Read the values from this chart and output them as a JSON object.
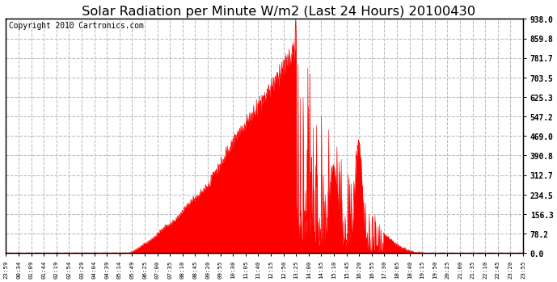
{
  "title": "Solar Radiation per Minute W/m2 (Last 24 Hours) 20100430",
  "copyright": "Copyright 2010 Cartronics.com",
  "y_ticks": [
    0.0,
    78.2,
    156.3,
    234.5,
    312.7,
    390.8,
    469.0,
    547.2,
    625.3,
    703.5,
    781.7,
    859.8,
    938.0
  ],
  "ymax": 938.0,
  "ymin": 0.0,
  "fill_color": "#ff0000",
  "line_color": "#ff0000",
  "dashed_line_color": "#ff0000",
  "grid_color": "#bbbbbb",
  "background_color": "#ffffff",
  "plot_bg_color": "#ffffff",
  "title_fontsize": 11,
  "copyright_fontsize": 6.5,
  "tick_labels": [
    "23:59",
    "00:34",
    "01:09",
    "01:44",
    "02:19",
    "02:54",
    "03:29",
    "04:04",
    "04:39",
    "05:14",
    "05:49",
    "06:25",
    "07:00",
    "07:35",
    "08:10",
    "08:45",
    "09:20",
    "09:55",
    "10:30",
    "11:05",
    "11:40",
    "12:15",
    "12:50",
    "13:25",
    "14:00",
    "14:35",
    "15:10",
    "15:45",
    "16:20",
    "16:55",
    "17:30",
    "18:05",
    "18:40",
    "19:15",
    "19:50",
    "20:25",
    "21:00",
    "21:35",
    "22:10",
    "22:45",
    "23:20",
    "23:55"
  ]
}
